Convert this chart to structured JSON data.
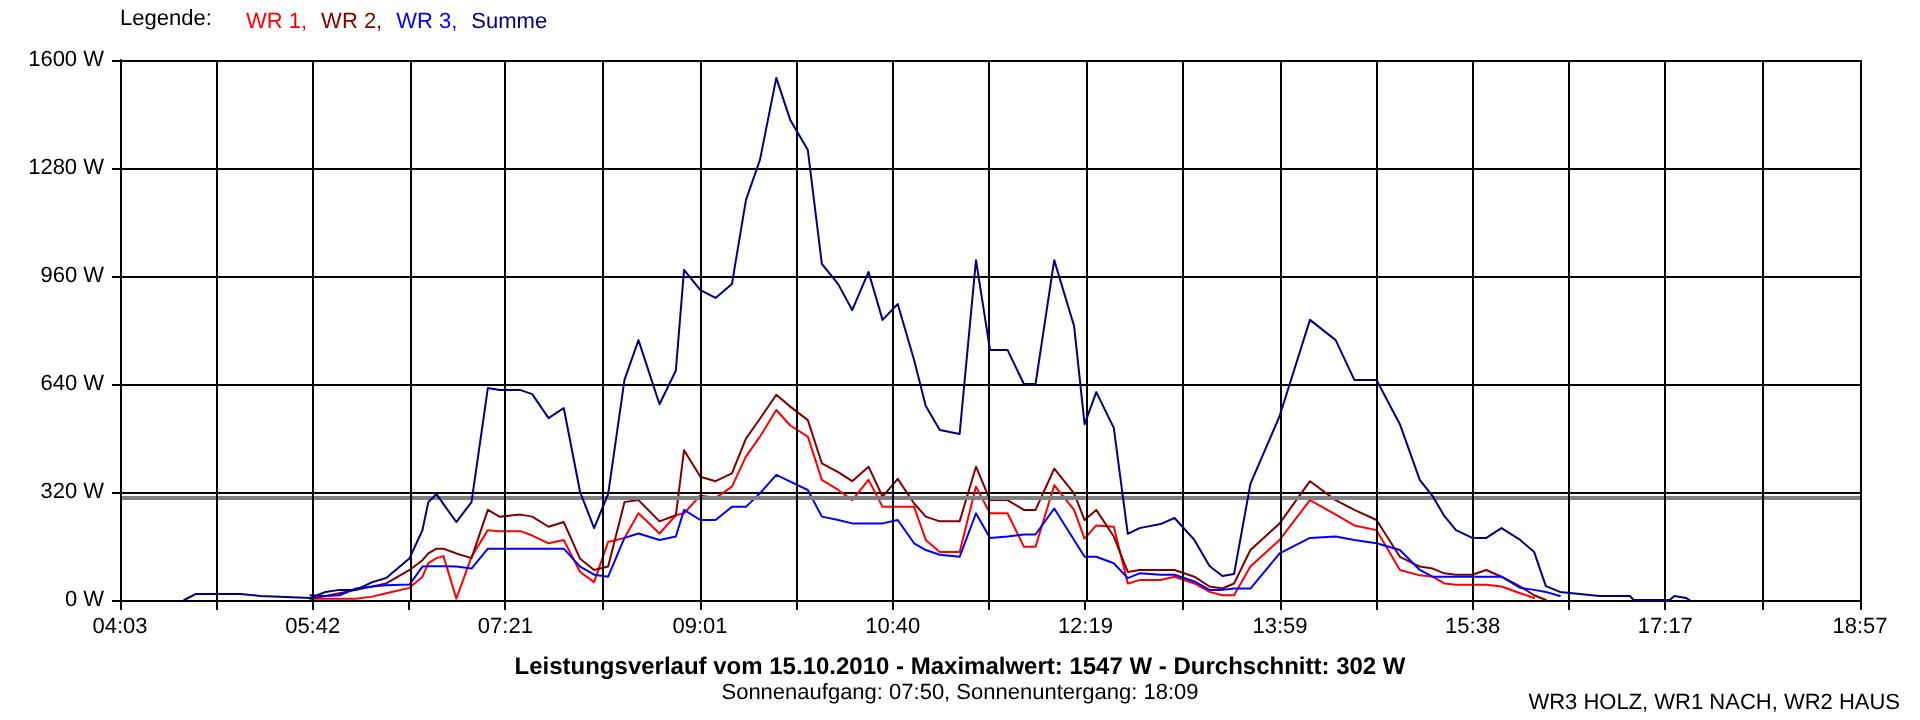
{
  "chart_data": {
    "type": "line",
    "title": "Leistungsverlauf vom 15.10.2010 - Maximalwert: 1547 W - Durchschnitt: 302 W",
    "subtitle": "Sonnenaufgang: 07:50, Sonnenuntergang: 18:09",
    "annotations": [
      "WR3 HOLZ, WR1 NACH, WR2 HAUS"
    ],
    "legend_title": "Legende:",
    "legend": "top left",
    "grid": true,
    "marker": "none",
    "line_style": "solid",
    "x": [
      4.6,
      4.7,
      5.08,
      5.25,
      5.68,
      5.81,
      5.93,
      6.07,
      6.21,
      6.33,
      6.53,
      6.64,
      6.69,
      6.76,
      6.82,
      6.93,
      7.06,
      7.2,
      7.3,
      7.48,
      7.58,
      7.72,
      7.85,
      7.99,
      8.11,
      8.23,
      8.37,
      8.49,
      8.67,
      8.81,
      8.88,
      9.02,
      9.15,
      9.29,
      9.41,
      9.53,
      9.67,
      9.79,
      9.94,
      10.06,
      10.2,
      10.32,
      10.46,
      10.58,
      10.71,
      10.85,
      10.95,
      11.07,
      11.24,
      11.38,
      11.5,
      11.65,
      11.79,
      11.89,
      12.05,
      12.22,
      12.31,
      12.41,
      12.56,
      12.68,
      12.78,
      12.96,
      13.08,
      13.25,
      13.38,
      13.49,
      13.59,
      13.73,
      13.98,
      14.24,
      14.46,
      14.62,
      14.81,
      15.01,
      15.18,
      15.29,
      15.39,
      15.49,
      15.63,
      15.75,
      15.88,
      16.04,
      16.16,
      16.26,
      16.38,
      16.72,
      16.98,
      17.01,
      17.32,
      17.36,
      17.46,
      17.49
    ],
    "xlim": [
      4.05,
      18.95
    ],
    "xticks": [
      {
        "value": 4.05,
        "label": "04:03"
      },
      {
        "value": 4.875,
        "label": null
      },
      {
        "value": 5.7,
        "label": "05:42"
      },
      {
        "value": 6.525,
        "label": null
      },
      {
        "value": 7.35,
        "label": "07:21"
      },
      {
        "value": 8.183,
        "label": null
      },
      {
        "value": 9.017,
        "label": "09:01"
      },
      {
        "value": 9.842,
        "label": null
      },
      {
        "value": 10.667,
        "label": "10:40"
      },
      {
        "value": 11.492,
        "label": null
      },
      {
        "value": 12.317,
        "label": "12:19"
      },
      {
        "value": 13.15,
        "label": null
      },
      {
        "value": 13.983,
        "label": "13:59"
      },
      {
        "value": 14.808,
        "label": null
      },
      {
        "value": 15.633,
        "label": "15:38"
      },
      {
        "value": 16.458,
        "label": null
      },
      {
        "value": 17.283,
        "label": "17:17"
      },
      {
        "value": 18.117,
        "label": null
      },
      {
        "value": 18.95,
        "label": "18:57"
      }
    ],
    "ylim": [
      0,
      1600
    ],
    "yticks": [
      {
        "value": 0,
        "label": "0 W"
      },
      {
        "value": 320,
        "label": "320 W"
      },
      {
        "value": 640,
        "label": "640 W"
      },
      {
        "value": 960,
        "label": "960 W"
      },
      {
        "value": 1280,
        "label": "1280 W"
      },
      {
        "value": 1600,
        "label": "1600 W"
      }
    ],
    "ref_lines": [
      {
        "axis": "y",
        "value": 302,
        "color": "#808080"
      }
    ],
    "series": [
      {
        "name": "WR 1,",
        "color": "#ff0000",
        "values": [
          null,
          null,
          null,
          null,
          4,
          4,
          4,
          4,
          10,
          20,
          36,
          69,
          109,
          124,
          130,
          4,
          128,
          207,
          204,
          204,
          191,
          168,
          178,
          83,
          53,
          172,
          184,
          257,
          197,
          251,
          257,
          310,
          302,
          336,
          425,
          484,
          563,
          517,
          484,
          356,
          326,
          296,
          356,
          276,
          276,
          276,
          178,
          142,
          142,
          336,
          257,
          257,
          158,
          158,
          340,
          267,
          182,
          221,
          217,
          49,
          59,
          59,
          69,
          49,
          24,
          14,
          14,
          99,
          178,
          296,
          253,
          221,
          207,
          89,
          73,
          69,
          49,
          45,
          45,
          45,
          40,
          20,
          6,
          null,
          null,
          null,
          null,
          null,
          null,
          null,
          null,
          null
        ]
      },
      {
        "name": "WR 2,",
        "color": "#800000",
        "values": [
          null,
          null,
          null,
          null,
          4,
          12,
          20,
          30,
          40,
          49,
          89,
          118,
          138,
          152,
          152,
          138,
          124,
          267,
          247,
          253,
          247,
          217,
          231,
          122,
          89,
          99,
          290,
          296,
          233,
          251,
          444,
          365,
          352,
          375,
          478,
          537,
          608,
          573,
          533,
          405,
          379,
          352,
          395,
          306,
          359,
          286,
          247,
          233,
          233,
          395,
          296,
          296,
          267,
          267,
          389,
          316,
          237,
          267,
          188,
          83,
          89,
          89,
          89,
          69,
          40,
          34,
          49,
          148,
          227,
          352,
          296,
          267,
          237,
          128,
          99,
          93,
          79,
          75,
          75,
          89,
          69,
          40,
          14,
          0,
          null,
          null,
          null,
          null,
          null,
          null,
          null,
          null
        ]
      },
      {
        "name": "WR 3,",
        "color": "#0000ff",
        "values": [
          null,
          null,
          null,
          null,
          14,
          12,
          14,
          34,
          40,
          44,
          46,
          99,
          100,
          100,
          100,
          99,
          93,
          152,
          152,
          152,
          152,
          152,
          152,
          99,
          75,
          69,
          184,
          197,
          178,
          188,
          267,
          237,
          237,
          276,
          276,
          316,
          371,
          351,
          326,
          247,
          237,
          227,
          227,
          227,
          237,
          168,
          148,
          134,
          128,
          257,
          184,
          188,
          194,
          194,
          271,
          178,
          128,
          128,
          109,
          65,
          79,
          75,
          75,
          55,
          30,
          30,
          34,
          34,
          138,
          184,
          188,
          178,
          168,
          148,
          89,
          69,
          69,
          69,
          69,
          69,
          69,
          36,
          30,
          24,
          12,
          null,
          null,
          null,
          null,
          null,
          null,
          null
        ]
      },
      {
        "name": "Summe",
        "color": "#000080",
        "values": [
          0,
          18,
          18,
          12,
          6,
          24,
          30,
          30,
          53,
          65,
          124,
          207,
          290,
          314,
          284,
          231,
          290,
          628,
          622,
          622,
          610,
          539,
          569,
          320,
          213,
          314,
          652,
          770,
          580,
          680,
          978,
          918,
          895,
          936,
          1185,
          1304,
          1547,
          1422,
          1333,
          996,
          936,
          859,
          972,
          830,
          877,
          711,
          575,
          504,
          492,
          1007,
          741,
          741,
          640,
          640,
          1007,
          812,
          521,
          616,
          510,
          196,
          213,
          225,
          243,
          178,
          101,
          71,
          77,
          344,
          545,
          830,
          770,
          652,
          652,
          521,
          356,
          308,
          249,
          207,
          184,
          184,
          213,
          178,
          142,
          41,
          24,
          12,
          12,
          0,
          0,
          12,
          6,
          0
        ]
      }
    ]
  }
}
